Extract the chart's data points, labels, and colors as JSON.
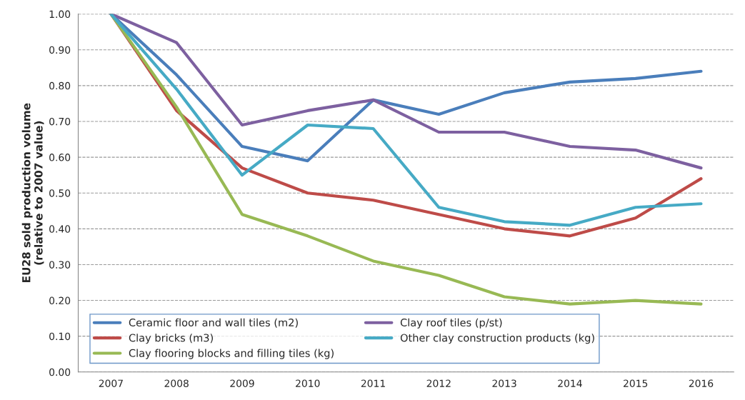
{
  "chart_data": {
    "type": "line",
    "ylabel": "EU28 sold production volume\n(relative to 2007 value)",
    "categories": [
      "2007",
      "2008",
      "2009",
      "2010",
      "2011",
      "2012",
      "2013",
      "2014",
      "2015",
      "2016"
    ],
    "series": [
      {
        "name": "Ceramic floor and wall tiles (m2)",
        "color": "#4a7ebb",
        "values": [
          1.0,
          0.83,
          0.63,
          0.59,
          0.76,
          0.72,
          0.78,
          0.81,
          0.82,
          0.84
        ]
      },
      {
        "name": "Clay bricks (m3)",
        "color": "#be4b48",
        "values": [
          1.0,
          0.73,
          0.57,
          0.5,
          0.48,
          0.44,
          0.4,
          0.38,
          0.43,
          0.54
        ]
      },
      {
        "name": "Clay flooring blocks and filling tiles (kg)",
        "color": "#98b954",
        "values": [
          1.0,
          0.74,
          0.44,
          0.38,
          0.31,
          0.27,
          0.21,
          0.19,
          0.2,
          0.19
        ]
      },
      {
        "name": "Clay roof tiles (p/st)",
        "color": "#7d60a0",
        "values": [
          1.0,
          0.92,
          0.69,
          0.73,
          0.76,
          0.67,
          0.67,
          0.63,
          0.62,
          0.57
        ]
      },
      {
        "name": "Other clay construction products (kg)",
        "color": "#46aac5",
        "values": [
          1.0,
          0.79,
          0.55,
          0.69,
          0.68,
          0.46,
          0.42,
          0.41,
          0.46,
          0.47
        ]
      }
    ],
    "ylim": [
      0,
      1.0
    ],
    "yticks": [
      {
        "value": 0,
        "label": "0.00"
      },
      {
        "value": 0.1,
        "label": "0.10"
      },
      {
        "value": 0.2,
        "label": "0.20"
      },
      {
        "value": 0.3,
        "label": "0.30"
      },
      {
        "value": 0.4,
        "label": "0.40"
      },
      {
        "value": 0.5,
        "label": "0.50"
      },
      {
        "value": 0.6,
        "label": "0.60"
      },
      {
        "value": 0.7,
        "label": "0.70"
      },
      {
        "value": 0.8,
        "label": "0.80"
      },
      {
        "value": 0.9,
        "label": "0.90"
      },
      {
        "value": 1.0,
        "label": "1.00"
      }
    ],
    "grid": "y",
    "legend": "bottom left",
    "marker": "none",
    "line_style": "solid"
  }
}
